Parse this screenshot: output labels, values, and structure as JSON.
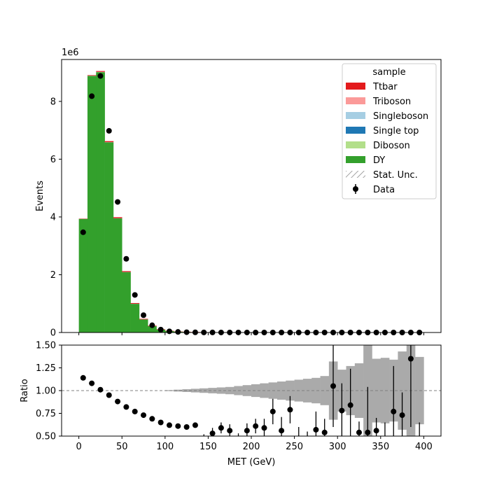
{
  "chart_data": {
    "type": "bar",
    "stacked": true,
    "x_unit": "MET (GeV)",
    "bin_edges": [
      0,
      10,
      20,
      30,
      40,
      50,
      60,
      70,
      80,
      90,
      100,
      110,
      120,
      130,
      140,
      150,
      160,
      170,
      180,
      190,
      200,
      210,
      220,
      230,
      240,
      250,
      260,
      270,
      280,
      290,
      300,
      310,
      320,
      330,
      340,
      350,
      360,
      370,
      380,
      390,
      400
    ],
    "top_panel": {
      "ylabel": "Events",
      "y_scale_label": "1e6",
      "ylim": [
        0,
        9.45
      ],
      "y_ticks": [
        0,
        2,
        4,
        6,
        8
      ],
      "y_unit_multiplier": 1000000,
      "series": [
        {
          "name": "DY",
          "color": "#33a02c",
          "values": [
            3.93,
            8.88,
            9.01,
            6.58,
            3.95,
            2.09,
            0.99,
            0.45,
            0.22,
            0.1,
            0.05,
            0.03,
            0.02,
            0.012,
            0.008,
            0.005,
            0.004,
            0.003,
            0.002,
            0.0015,
            0.001,
            0.001,
            0.0008,
            0.0006,
            0.0005,
            0.0004,
            0.0003,
            0.0003,
            0.0002,
            0.0002,
            0.0002,
            0.0001,
            0.0001,
            0.0001,
            0.0001,
            0.0001,
            0.0001,
            0.0001,
            0.0001,
            0.0001
          ]
        },
        {
          "name": "Diboson",
          "color": "#b2df8a",
          "values": [
            0.002,
            0.004,
            0.005,
            0.004,
            0.003,
            0.002,
            0.0015,
            0.001,
            0.0008,
            0.0006,
            0.0005,
            0.0004,
            0.0003,
            0.0003,
            0.0002,
            0.0002,
            0.0002,
            0.0001,
            0.0001,
            0.0001,
            0.0001,
            0.0001,
            0.0001,
            0.0001,
            0.0001,
            0.0001,
            0.0001,
            0.0001,
            0.0001,
            0.0001,
            0.0001,
            0.0001,
            0.0001,
            0.0001,
            0.0001,
            0.0001,
            0.0001,
            0.0001,
            0.0001,
            0.0001
          ]
        },
        {
          "name": "Single top",
          "color": "#1f78b4",
          "values": [
            0.001,
            0.002,
            0.003,
            0.003,
            0.003,
            0.002,
            0.002,
            0.0015,
            0.001,
            0.001,
            0.0008,
            0.0006,
            0.0005,
            0.0004,
            0.0003,
            0.0003,
            0.0002,
            0.0002,
            0.0002,
            0.0001,
            0.0001,
            0.0001,
            0.0001,
            0.0001,
            0.0001,
            0.0001,
            0.0001,
            0.0001,
            0.0001,
            0.0001,
            0.0001,
            0.0001,
            0.0001,
            0.0001,
            0.0001,
            0.0001,
            0.0001,
            0.0001,
            0.0001,
            0.0001
          ]
        },
        {
          "name": "Singleboson",
          "color": "#a6cee3",
          "values": [
            0.001,
            0.002,
            0.002,
            0.002,
            0.001,
            0.001,
            0.0008,
            0.0005,
            0.0003,
            0.0002,
            0.0001,
            0.0001,
            0.0001,
            0.0001,
            0.0001,
            0.0001,
            0.0001,
            0.0001,
            0.0001,
            0.0001,
            0.0001,
            0.0001,
            0.0001,
            0.0001,
            0.0001,
            0.0001,
            0.0001,
            0.0001,
            0.0001,
            0.0001,
            0.0001,
            0.0001,
            0.0001,
            0.0001,
            0.0001,
            0.0001,
            0.0001,
            0.0001,
            0.0001,
            0.0001
          ]
        },
        {
          "name": "Triboson",
          "color": "#fb9a99",
          "values": [
            0.0001,
            0.0001,
            0.0001,
            0.0001,
            0.0001,
            0.0001,
            0.0001,
            0.0001,
            0.0001,
            0.0001,
            0.0001,
            0.0001,
            0.0001,
            0.0001,
            0.0001,
            0.0001,
            0.0001,
            0.0001,
            0.0001,
            0.0001,
            0.0001,
            0.0001,
            0.0001,
            0.0001,
            0.0001,
            0.0001,
            0.0001,
            0.0001,
            0.0001,
            0.0001,
            0.0001,
            0.0001,
            0.0001,
            0.0001,
            0.0001,
            0.0001,
            0.0001,
            0.0001,
            0.0001,
            0.0001
          ]
        },
        {
          "name": "Ttbar",
          "color": "#e31a1c",
          "values": [
            0.01,
            0.02,
            0.03,
            0.035,
            0.035,
            0.03,
            0.025,
            0.02,
            0.016,
            0.013,
            0.01,
            0.008,
            0.006,
            0.005,
            0.004,
            0.003,
            0.0025,
            0.002,
            0.0015,
            0.0012,
            0.001,
            0.0008,
            0.0006,
            0.0005,
            0.0004,
            0.0003,
            0.0003,
            0.0002,
            0.0002,
            0.0002,
            0.0001,
            0.0001,
            0.0001,
            0.0001,
            0.0001,
            0.0001,
            0.0001,
            0.0001,
            0.0001,
            0.0001
          ]
        }
      ],
      "data_points": {
        "name": "Data",
        "color": "#000000",
        "x": [
          5,
          15,
          25,
          35,
          45,
          55,
          65,
          75,
          85,
          95,
          105,
          115,
          125,
          135,
          145,
          155,
          165,
          175,
          185,
          195,
          205,
          215,
          225,
          235,
          245,
          255,
          265,
          275,
          285,
          295,
          305,
          315,
          325,
          335,
          345,
          355,
          365,
          375,
          385,
          395
        ],
        "y": [
          3.47,
          8.18,
          8.88,
          6.98,
          4.52,
          2.55,
          1.3,
          0.6,
          0.25,
          0.1,
          0.04,
          0.02,
          0.01,
          0.006,
          0.003,
          0.002,
          0.001,
          0.0008,
          0.0005,
          0.0004,
          0.0003,
          0.0002,
          0.0002,
          0.0001,
          0.0001,
          0.0001,
          0.0001,
          0.0001,
          0.0001,
          0.0001,
          0.0001,
          0.0001,
          0.0001,
          0.0001,
          0.0001,
          0.0001,
          0.0001,
          0.0001,
          0.0001,
          0.0001
        ]
      }
    },
    "bottom_panel": {
      "ylabel": "Ratio",
      "xlabel": "MET (GeV)",
      "ylim": [
        0.5,
        1.5
      ],
      "y_ticks": [
        0.5,
        0.75,
        1.0,
        1.25,
        1.5
      ],
      "y_tick_labels": [
        "0.50",
        "0.75",
        "1.00",
        "1.25",
        "1.50"
      ],
      "x_ticks": [
        0,
        50,
        100,
        150,
        200,
        250,
        300,
        350,
        400
      ],
      "xlim": [
        -20,
        420
      ],
      "reference_line": 1.0,
      "unc_band_color": "#aaaaaa",
      "stat_unc_half_width": [
        0,
        0,
        0,
        0,
        0,
        0,
        0,
        0,
        0,
        0,
        0.005,
        0.01,
        0.015,
        0.02,
        0.025,
        0.03,
        0.035,
        0.04,
        0.05,
        0.06,
        0.07,
        0.08,
        0.09,
        0.1,
        0.11,
        0.12,
        0.13,
        0.14,
        0.16,
        0.32,
        0.23,
        0.27,
        0.3,
        0.5,
        0.35,
        0.36,
        0.34,
        0.43,
        0.5,
        0.37
      ],
      "ratio_points": [
        {
          "x": 5,
          "y": 1.14,
          "err": 0
        },
        {
          "x": 15,
          "y": 1.08,
          "err": 0
        },
        {
          "x": 25,
          "y": 1.01,
          "err": 0
        },
        {
          "x": 35,
          "y": 0.95,
          "err": 0
        },
        {
          "x": 45,
          "y": 0.88,
          "err": 0
        },
        {
          "x": 55,
          "y": 0.82,
          "err": 0
        },
        {
          "x": 65,
          "y": 0.77,
          "err": 0
        },
        {
          "x": 75,
          "y": 0.73,
          "err": 0
        },
        {
          "x": 85,
          "y": 0.69,
          "err": 0
        },
        {
          "x": 95,
          "y": 0.65,
          "err": 0
        },
        {
          "x": 105,
          "y": 0.62,
          "err": 0
        },
        {
          "x": 115,
          "y": 0.61,
          "err": 0
        },
        {
          "x": 125,
          "y": 0.6,
          "err": 0
        },
        {
          "x": 135,
          "y": 0.62,
          "err": 0
        },
        {
          "x": 145,
          "y": 0.4,
          "err": 0.12
        },
        {
          "x": 155,
          "y": 0.53,
          "err": 0.06
        },
        {
          "x": 165,
          "y": 0.59,
          "err": 0.06
        },
        {
          "x": 175,
          "y": 0.56,
          "err": 0.07
        },
        {
          "x": 185,
          "y": 0.45,
          "err": 0.08
        },
        {
          "x": 195,
          "y": 0.56,
          "err": 0.08
        },
        {
          "x": 205,
          "y": 0.61,
          "err": 0.08
        },
        {
          "x": 215,
          "y": 0.59,
          "err": 0.1
        },
        {
          "x": 225,
          "y": 0.77,
          "err": 0.14
        },
        {
          "x": 235,
          "y": 0.56,
          "err": 0.15
        },
        {
          "x": 245,
          "y": 0.79,
          "err": 0.15
        },
        {
          "x": 255,
          "y": 0.45,
          "err": 0.15
        },
        {
          "x": 265,
          "y": 0.4,
          "err": 0.15
        },
        {
          "x": 275,
          "y": 0.57,
          "err": 0.2
        },
        {
          "x": 285,
          "y": 0.54,
          "err": 0.15
        },
        {
          "x": 295,
          "y": 1.05,
          "err": 0.45
        },
        {
          "x": 305,
          "y": 0.78,
          "err": 0.3
        },
        {
          "x": 315,
          "y": 0.84,
          "err": 0.4
        },
        {
          "x": 325,
          "y": 0.54,
          "err": 0.12
        },
        {
          "x": 335,
          "y": 0.54,
          "err": 0.5
        },
        {
          "x": 345,
          "y": 0.56,
          "err": 0.14
        },
        {
          "x": 355,
          "y": 0.35,
          "err": 0.3
        },
        {
          "x": 365,
          "y": 0.77,
          "err": 0.5
        },
        {
          "x": 375,
          "y": 0.73,
          "err": 0.25
        },
        {
          "x": 385,
          "y": 1.35,
          "err": 0.75
        },
        {
          "x": 395,
          "y": 0.4,
          "err": 0.25
        }
      ]
    },
    "legend": {
      "title": "sample",
      "position": "top-right",
      "entries": [
        {
          "label": "Ttbar",
          "kind": "patch",
          "color": "#e31a1c"
        },
        {
          "label": "Triboson",
          "kind": "patch",
          "color": "#fb9a99"
        },
        {
          "label": "Singleboson",
          "kind": "patch",
          "color": "#a6cee3"
        },
        {
          "label": "Single top",
          "kind": "patch",
          "color": "#1f78b4"
        },
        {
          "label": "Diboson",
          "kind": "patch",
          "color": "#b2df8a"
        },
        {
          "label": "DY",
          "kind": "patch",
          "color": "#33a02c"
        },
        {
          "label": "Stat. Unc.",
          "kind": "hatch",
          "color": "#888888"
        },
        {
          "label": "Data",
          "kind": "marker",
          "color": "#000000"
        }
      ]
    }
  }
}
